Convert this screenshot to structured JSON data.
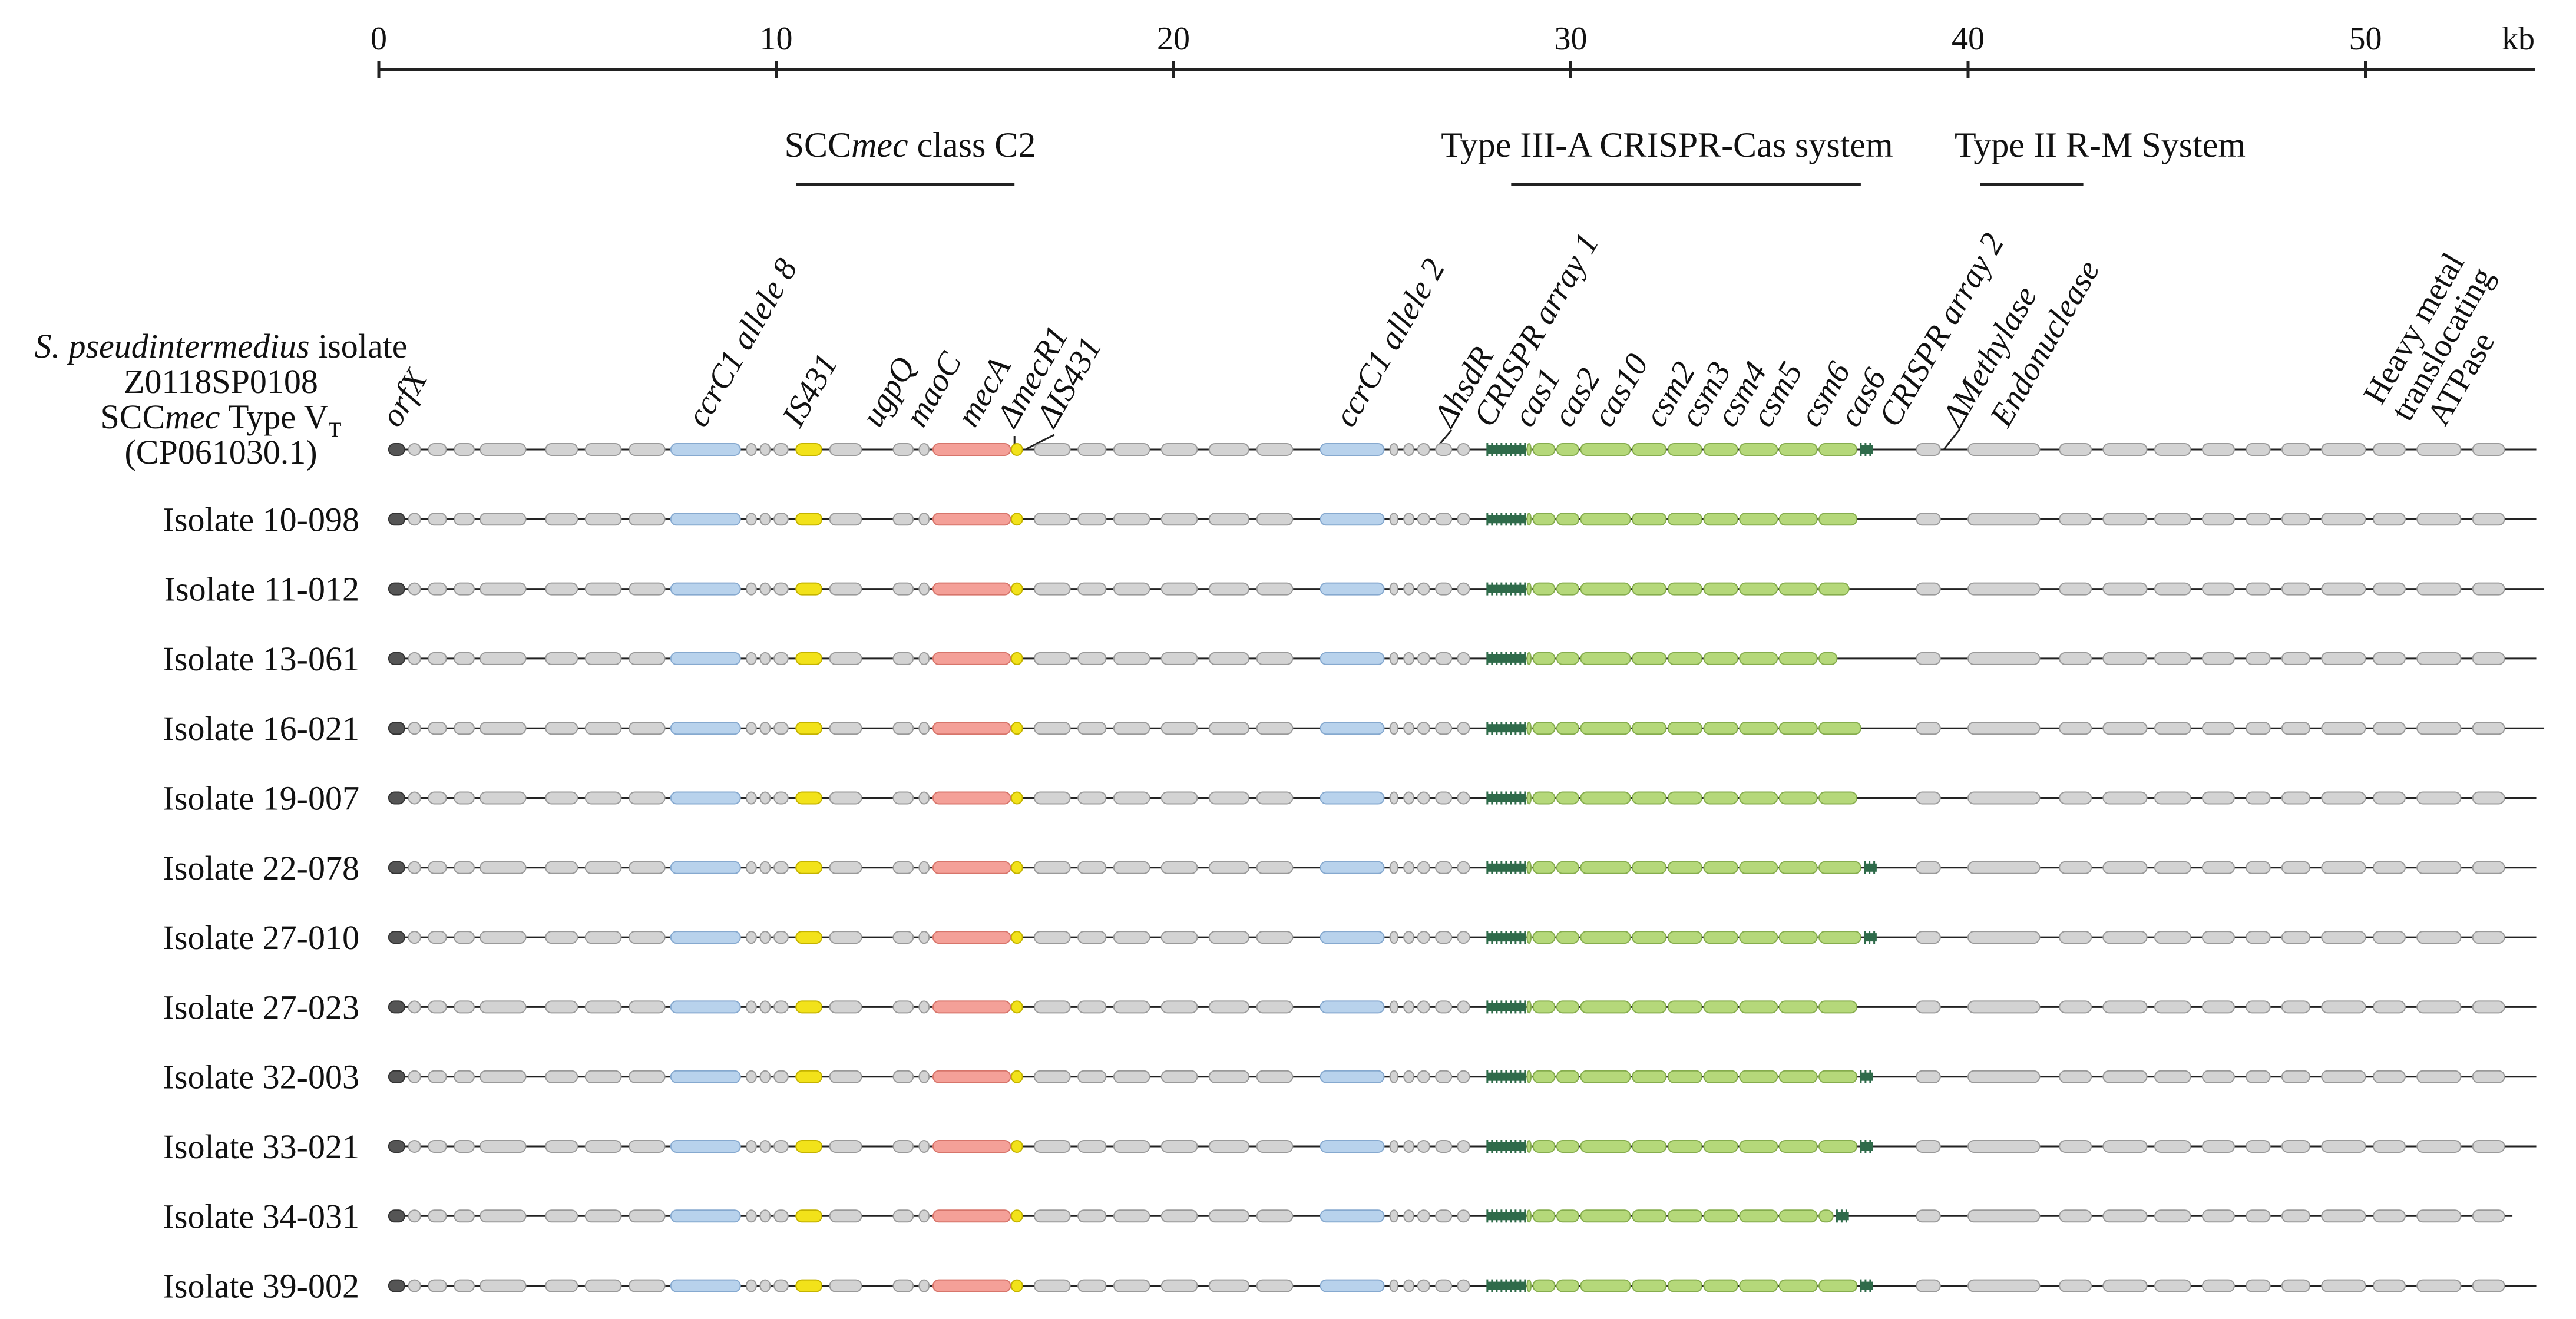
{
  "scale": {
    "ticks": [
      "0",
      "10",
      "20",
      "30",
      "40",
      "50"
    ],
    "tick_kb": [
      0,
      10,
      20,
      30,
      40,
      50
    ],
    "unit": "kb",
    "max_kb": 54.5
  },
  "regions": [
    {
      "prefix": "SCC",
      "italic": "mec",
      "suffix": " class C2",
      "start_kb": 10.5,
      "end_kb": 16.0
    },
    {
      "prefix": "Type III-A CRISPR-Cas system",
      "italic": "",
      "suffix": "",
      "start_kb": 28.5,
      "end_kb": 37.3
    },
    {
      "prefix": "Type II R-M System",
      "italic": "",
      "suffix": "",
      "start_kb": 40.3,
      "end_kb": 42.9
    }
  ],
  "gene_labels": [
    {
      "text": "orfX",
      "italic": true,
      "kb": 0.5
    },
    {
      "text": "ccrC1 allele 8",
      "italic": true,
      "kb": 8.2
    },
    {
      "text": "IS431",
      "italic": true,
      "kb": 10.6
    },
    {
      "text": "ugpQ",
      "italic": true,
      "kb": 12.6
    },
    {
      "text": "maoC",
      "italic": true,
      "kb": 13.7
    },
    {
      "text": "mecA",
      "italic": true,
      "kb": 15.0
    },
    {
      "text": "ΔmecR1",
      "italic": true,
      "kb": 16.0
    },
    {
      "text": "ΔIS431",
      "italic": true,
      "kb": 17.0
    },
    {
      "text": "ccrC1 allele 2",
      "italic": true,
      "kb": 24.5
    },
    {
      "text": "ΔhsdR",
      "italic": true,
      "kb": 27.0
    },
    {
      "text": "CRISPR array 1",
      "italic": true,
      "kb": 28.0
    },
    {
      "text": "cas1",
      "italic": true,
      "kb": 29.0
    },
    {
      "text": "cas2",
      "italic": true,
      "kb": 30.0
    },
    {
      "text": "cas10",
      "italic": true,
      "kb": 31.0
    },
    {
      "text": "csm2",
      "italic": true,
      "kb": 32.3
    },
    {
      "text": "csm3",
      "italic": true,
      "kb": 33.2
    },
    {
      "text": "csm4",
      "italic": true,
      "kb": 34.1
    },
    {
      "text": "csm5",
      "italic": true,
      "kb": 35.0
    },
    {
      "text": "csm6",
      "italic": true,
      "kb": 36.2
    },
    {
      "text": "cas6",
      "italic": true,
      "kb": 37.2
    },
    {
      "text": "CRISPR array 2",
      "italic": true,
      "kb": 38.2
    },
    {
      "text": "ΔMethylase",
      "italic": true,
      "kb": 39.8
    },
    {
      "text": "Endonuclease",
      "italic": true,
      "kb": 41.0
    },
    {
      "text": "Heavy metal",
      "italic": false,
      "kb": 50.4
    },
    {
      "text": "translocating",
      "italic": false,
      "kb": 51.1
    },
    {
      "text": "ATPase",
      "italic": false,
      "kb": 52.0
    }
  ],
  "reference": {
    "line1_italic": "S. pseudintermedius",
    "line1_rest": " isolate",
    "line2": "Z0118SP0108",
    "line3_prefix": "SCC",
    "line3_italic": "mec",
    "line3_suffix": " Type V",
    "line3_sub": "T",
    "line4": "(CP061030.1)"
  },
  "isolates": [
    {
      "label": "",
      "cas_end_kb": 37.2,
      "array2": true,
      "end_kb": 54.3
    },
    {
      "label": "Isolate 10-098",
      "cas_end_kb": 37.2,
      "array2": false,
      "end_kb": 54.3
    },
    {
      "label": "Isolate 11-012",
      "cas_end_kb": 37.0,
      "array2": false,
      "end_kb": 54.5
    },
    {
      "label": "Isolate 13-061",
      "cas_end_kb": 36.7,
      "array2": false,
      "end_kb": 54.3
    },
    {
      "label": "Isolate 16-021",
      "cas_end_kb": 37.3,
      "array2": false,
      "end_kb": 54.5
    },
    {
      "label": "Isolate 19-007",
      "cas_end_kb": 37.2,
      "array2": false,
      "end_kb": 54.3
    },
    {
      "label": "Isolate 22-078",
      "cas_end_kb": 37.3,
      "array2": true,
      "end_kb": 54.3
    },
    {
      "label": "Isolate 27-010",
      "cas_end_kb": 37.3,
      "array2": true,
      "end_kb": 54.3
    },
    {
      "label": "Isolate 27-023",
      "cas_end_kb": 37.2,
      "array2": false,
      "end_kb": 54.3
    },
    {
      "label": "Isolate 32-003",
      "cas_end_kb": 37.2,
      "array2": true,
      "end_kb": 54.3
    },
    {
      "label": "Isolate 33-021",
      "cas_end_kb": 37.2,
      "array2": true,
      "end_kb": 54.3
    },
    {
      "label": "Isolate 34-031",
      "cas_end_kb": 36.6,
      "array2": true,
      "end_kb": 53.7
    },
    {
      "label": "Isolate 39-002",
      "cas_end_kb": 37.2,
      "array2": true,
      "end_kb": 54.3
    }
  ],
  "colors": {
    "gray": "#d3d3d3",
    "gray_stroke": "#9a9a9a",
    "blue": "#b8d2ec",
    "blue_stroke": "#86a9cf",
    "yellow": "#f2e21a",
    "yellow_stroke": "#c4b300",
    "red": "#f4a098",
    "red_stroke": "#d7756b",
    "green": "#b5d87a",
    "green_stroke": "#86ad4e",
    "array": "#2f6b4a",
    "orfx": "#555555",
    "line": "#222222"
  }
}
